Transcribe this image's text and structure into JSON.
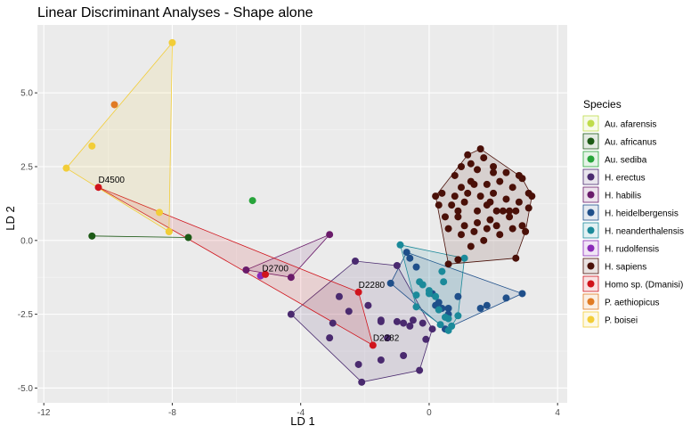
{
  "chart_data": {
    "type": "scatter",
    "title": "Linear Discriminant Analyses - Shape alone",
    "xlabel": "LD 1",
    "ylabel": "LD 2",
    "xlim": [
      -12.2,
      4.3
    ],
    "ylim": [
      -5.5,
      7.3
    ],
    "x_ticks": [
      -12,
      -8,
      -4,
      0,
      4
    ],
    "y_ticks": [
      -5.0,
      -2.5,
      0.0,
      2.5,
      5.0
    ],
    "x_tick_labels": [
      "-12",
      "-8",
      "-4",
      "0",
      "4"
    ],
    "y_tick_labels": [
      "-5.0",
      "-2.5",
      "0.0",
      "2.5",
      "5.0"
    ],
    "grid": true,
    "legend_title": "Species",
    "legend_position": "right",
    "series": [
      {
        "name": "Au. afarensis",
        "color": "#bfdc4a",
        "points": [
          [
            -8.1,
            0.3
          ]
        ]
      },
      {
        "name": "Au. africanus",
        "color": "#1d5a16",
        "points": [
          [
            -10.5,
            0.15
          ],
          [
            -7.5,
            0.1
          ]
        ]
      },
      {
        "name": "Au. sediba",
        "color": "#27a43a",
        "points": [
          [
            -5.5,
            1.35
          ]
        ]
      },
      {
        "name": "H. erectus",
        "color": "#4a2a6f",
        "points": [
          [
            -4.3,
            -2.5
          ],
          [
            -3.0,
            -2.8
          ],
          [
            -2.8,
            -1.9
          ],
          [
            -2.5,
            -2.4
          ],
          [
            -2.3,
            -0.7
          ],
          [
            -2.2,
            -4.2
          ],
          [
            -2.1,
            -4.8
          ],
          [
            -1.9,
            -2.2
          ],
          [
            -1.5,
            -2.75
          ],
          [
            -1.5,
            -4.05
          ],
          [
            -1.5,
            -2.7
          ],
          [
            -1.3,
            -3.3
          ],
          [
            -1.0,
            -2.75
          ],
          [
            -0.8,
            -3.9
          ],
          [
            -0.6,
            -2.9
          ],
          [
            -0.2,
            -2.8
          ],
          [
            -0.1,
            -3.35
          ],
          [
            0.1,
            -3.0
          ],
          [
            -1.0,
            -0.85
          ],
          [
            -0.5,
            -2.7
          ],
          [
            -0.8,
            -2.8
          ],
          [
            -3.1,
            -3.3
          ],
          [
            -0.3,
            -4.4
          ]
        ]
      },
      {
        "name": "H. habilis",
        "color": "#6a1b6a",
        "points": [
          [
            -4.3,
            -1.25
          ],
          [
            -3.1,
            0.2
          ],
          [
            -5.7,
            -1.0
          ]
        ]
      },
      {
        "name": "H. heidelbergensis",
        "color": "#1f4f8a",
        "points": [
          [
            -1.2,
            -1.45
          ],
          [
            -0.7,
            -0.4
          ],
          [
            -0.6,
            -0.6
          ],
          [
            -0.4,
            -0.9
          ],
          [
            0.1,
            -1.8
          ],
          [
            0.2,
            -2.2
          ],
          [
            0.3,
            -2.1
          ],
          [
            0.6,
            -2.3
          ],
          [
            0.6,
            -2.5
          ],
          [
            0.9,
            -1.9
          ],
          [
            1.6,
            -2.3
          ],
          [
            1.8,
            -2.2
          ],
          [
            2.4,
            -1.95
          ],
          [
            2.9,
            -1.8
          ],
          [
            0.4,
            -2.3
          ],
          [
            0.5,
            -3.0
          ]
        ]
      },
      {
        "name": "H. neanderthalensis",
        "color": "#1b8a9a",
        "points": [
          [
            -0.9,
            -0.15
          ],
          [
            -0.3,
            -1.4
          ],
          [
            -0.4,
            -1.85
          ],
          [
            -0.4,
            -2.25
          ],
          [
            0.0,
            -1.8
          ],
          [
            0.2,
            -1.9
          ],
          [
            0.3,
            -2.35
          ],
          [
            0.4,
            -1.05
          ],
          [
            0.6,
            -2.65
          ],
          [
            0.9,
            -2.55
          ],
          [
            1.1,
            -0.6
          ],
          [
            0.7,
            -2.9
          ],
          [
            0.5,
            -2.6
          ],
          [
            0.6,
            -3.05
          ],
          [
            0.45,
            -1.4
          ],
          [
            -0.2,
            -1.5
          ],
          [
            0.0,
            -1.7
          ],
          [
            0.35,
            -2.85
          ]
        ]
      },
      {
        "name": "H. rudolfensis",
        "color": "#8a2ab8",
        "points": [
          [
            -5.25,
            -1.2
          ]
        ]
      },
      {
        "name": "H. sapiens",
        "color": "#4a1008",
        "points": [
          [
            1.6,
            3.1
          ],
          [
            1.0,
            2.5
          ],
          [
            2.9,
            2.1
          ],
          [
            3.1,
            1.6
          ],
          [
            2.7,
            -0.6
          ],
          [
            0.9,
            -0.65
          ],
          [
            2.1,
            1.0
          ],
          [
            1.4,
            1.9
          ],
          [
            1.8,
            1.2
          ],
          [
            0.8,
            1.5
          ],
          [
            1.2,
            2.9
          ],
          [
            1.5,
            2.4
          ],
          [
            2.0,
            2.5
          ],
          [
            2.5,
            0.8
          ],
          [
            2.9,
            0.5
          ],
          [
            1.7,
            0.0
          ],
          [
            2.0,
            1.6
          ],
          [
            2.3,
            1.0
          ],
          [
            1.1,
            0.5
          ],
          [
            0.6,
            0.4
          ],
          [
            1.3,
            2.0
          ],
          [
            0.9,
            1.0
          ],
          [
            1.5,
            0.6
          ],
          [
            2.6,
            1.8
          ],
          [
            3.1,
            1.1
          ],
          [
            3.2,
            1.5
          ],
          [
            0.5,
            0.8
          ],
          [
            1.8,
            0.4
          ],
          [
            2.2,
            2.0
          ],
          [
            1.0,
            1.8
          ],
          [
            1.7,
            2.8
          ],
          [
            2.4,
            2.3
          ],
          [
            0.7,
            1.2
          ],
          [
            1.9,
            0.7
          ],
          [
            2.8,
            1.3
          ],
          [
            2.6,
            0.4
          ],
          [
            1.1,
            1.3
          ],
          [
            1.5,
            1.0
          ],
          [
            0.3,
            1.2
          ],
          [
            2.0,
            2.3
          ],
          [
            1.3,
            -0.2
          ],
          [
            0.6,
            -0.8
          ],
          [
            1.2,
            1.6
          ],
          [
            2.2,
            0.2
          ],
          [
            3.0,
            0.3
          ],
          [
            1.6,
            1.5
          ],
          [
            0.4,
            1.6
          ],
          [
            2.4,
            1.4
          ],
          [
            1.8,
            1.9
          ],
          [
            1.0,
            0.2
          ],
          [
            2.8,
            2.2
          ],
          [
            0.8,
            2.2
          ],
          [
            1.4,
            0.3
          ],
          [
            2.5,
            1.0
          ],
          [
            0.2,
            1.5
          ],
          [
            1.9,
            1.3
          ],
          [
            1.3,
            2.6
          ],
          [
            2.1,
            0.5
          ],
          [
            0.9,
            0.8
          ],
          [
            2.7,
            1.0
          ]
        ]
      },
      {
        "name": "Homo sp. (Dmanisi)",
        "color": "#d0141c",
        "points": [
          [
            -10.3,
            1.8
          ],
          [
            -5.1,
            -1.15
          ],
          [
            -2.2,
            -1.75
          ],
          [
            -1.75,
            -3.55
          ]
        ]
      },
      {
        "name": "P. aethiopicus",
        "color": "#e07b24",
        "points": [
          [
            -9.8,
            4.6
          ]
        ]
      },
      {
        "name": "P. boisei",
        "color": "#f2cd38",
        "points": [
          [
            -8.0,
            6.7
          ],
          [
            -10.5,
            3.2
          ],
          [
            -11.3,
            2.45
          ],
          [
            -8.4,
            0.95
          ],
          [
            -8.1,
            0.3
          ]
        ]
      }
    ],
    "annotations": [
      {
        "label": "D4500",
        "x": -10.3,
        "y": 1.8
      },
      {
        "label": "D2700",
        "x": -5.2,
        "y": -1.2
      },
      {
        "label": "D2280",
        "x": -2.2,
        "y": -1.75
      },
      {
        "label": "D2282",
        "x": -1.75,
        "y": -3.55
      }
    ]
  }
}
